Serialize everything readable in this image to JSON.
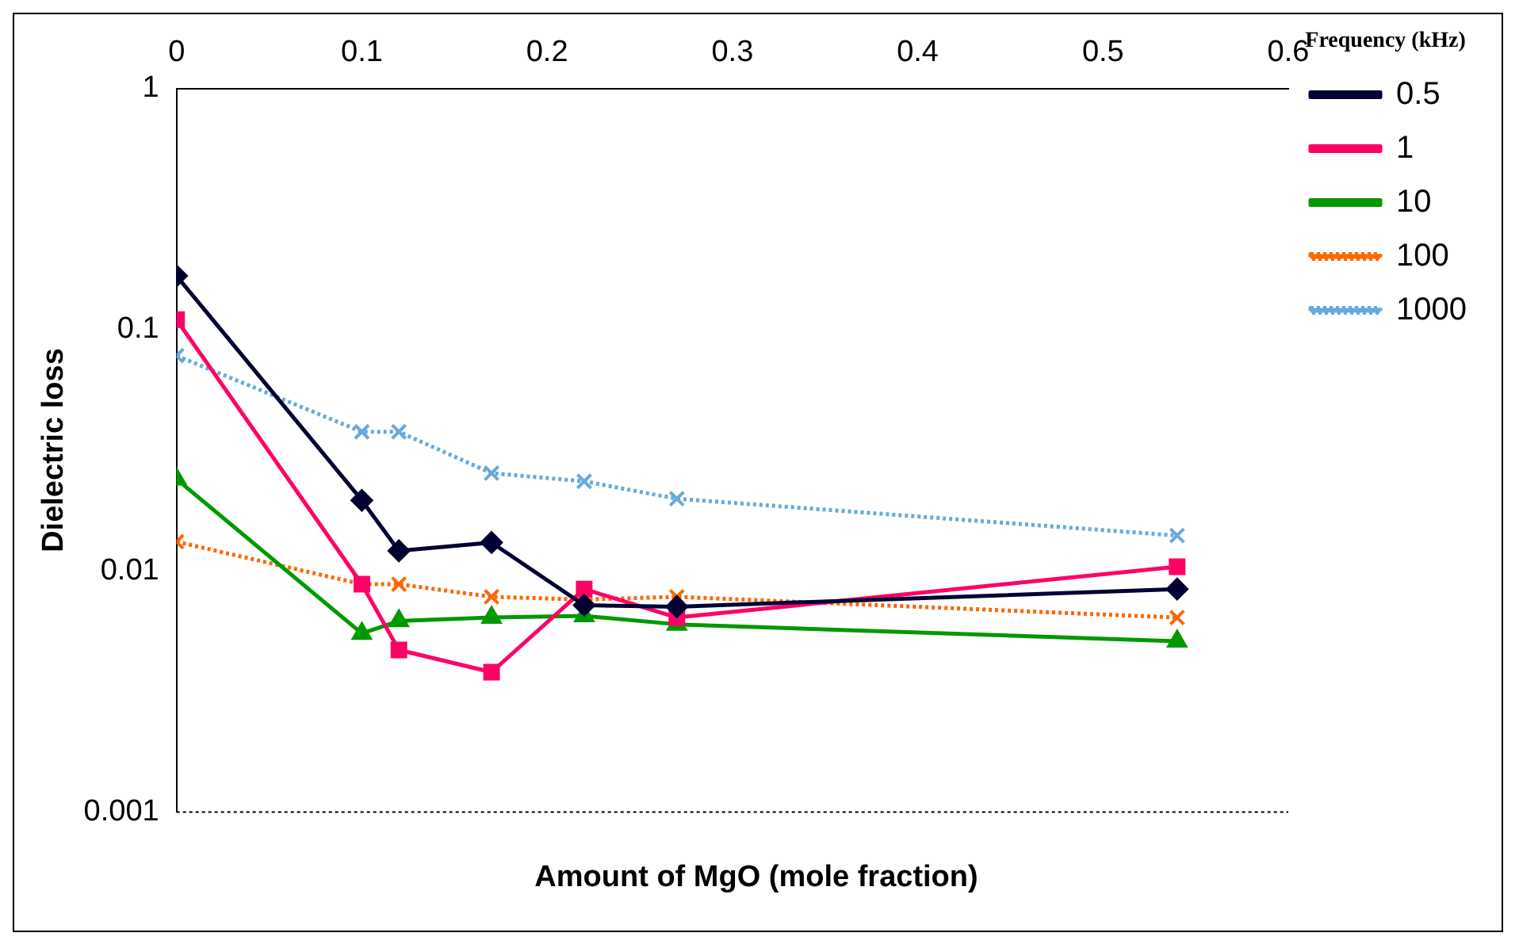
{
  "chart_data": {
    "type": "line",
    "xlabel": "Amount of MgO (mole fraction)",
    "ylabel": "Dielectric loss",
    "legend_title": "Frequency (kHz)",
    "legend": "right",
    "log": "y",
    "grid": false,
    "x": [
      0,
      0.1,
      0.12,
      0.17,
      0.22,
      0.27,
      0.54
    ],
    "xlim": [
      0,
      0.6
    ],
    "xticks": [
      0,
      0.1,
      0.2,
      0.3,
      0.4,
      0.5,
      0.6
    ],
    "ylim": [
      0.001,
      1
    ],
    "yticks": [
      0.001,
      0.01,
      0.1,
      1
    ],
    "series": [
      {
        "name": "0.5",
        "color": "#000033",
        "marker": "diamond",
        "line_style": "solid",
        "values": [
          0.167,
          0.0196,
          0.0121,
          0.0131,
          0.0072,
          0.0071,
          0.0084
        ]
      },
      {
        "name": "1",
        "color": "#ff0066",
        "marker": "square",
        "line_style": "solid",
        "values": [
          0.11,
          0.0088,
          0.0047,
          0.0038,
          0.0084,
          0.0064,
          0.0104
        ]
      },
      {
        "name": "10",
        "color": "#009900",
        "marker": "triangle",
        "line_style": "solid",
        "values": [
          0.024,
          0.0055,
          0.0062,
          0.0064,
          0.0065,
          0.006,
          0.0051
        ]
      },
      {
        "name": "100",
        "color": "#ff6600",
        "marker": "cross",
        "line_style": "dotted",
        "values": [
          0.0132,
          0.0088,
          0.0088,
          0.0078,
          0.0076,
          0.0078,
          0.0064
        ]
      },
      {
        "name": "1000",
        "color": "#66aadd",
        "marker": "cross",
        "line_style": "dotted",
        "values": [
          0.078,
          0.0377,
          0.0377,
          0.0254,
          0.0235,
          0.0199,
          0.014
        ]
      }
    ]
  }
}
